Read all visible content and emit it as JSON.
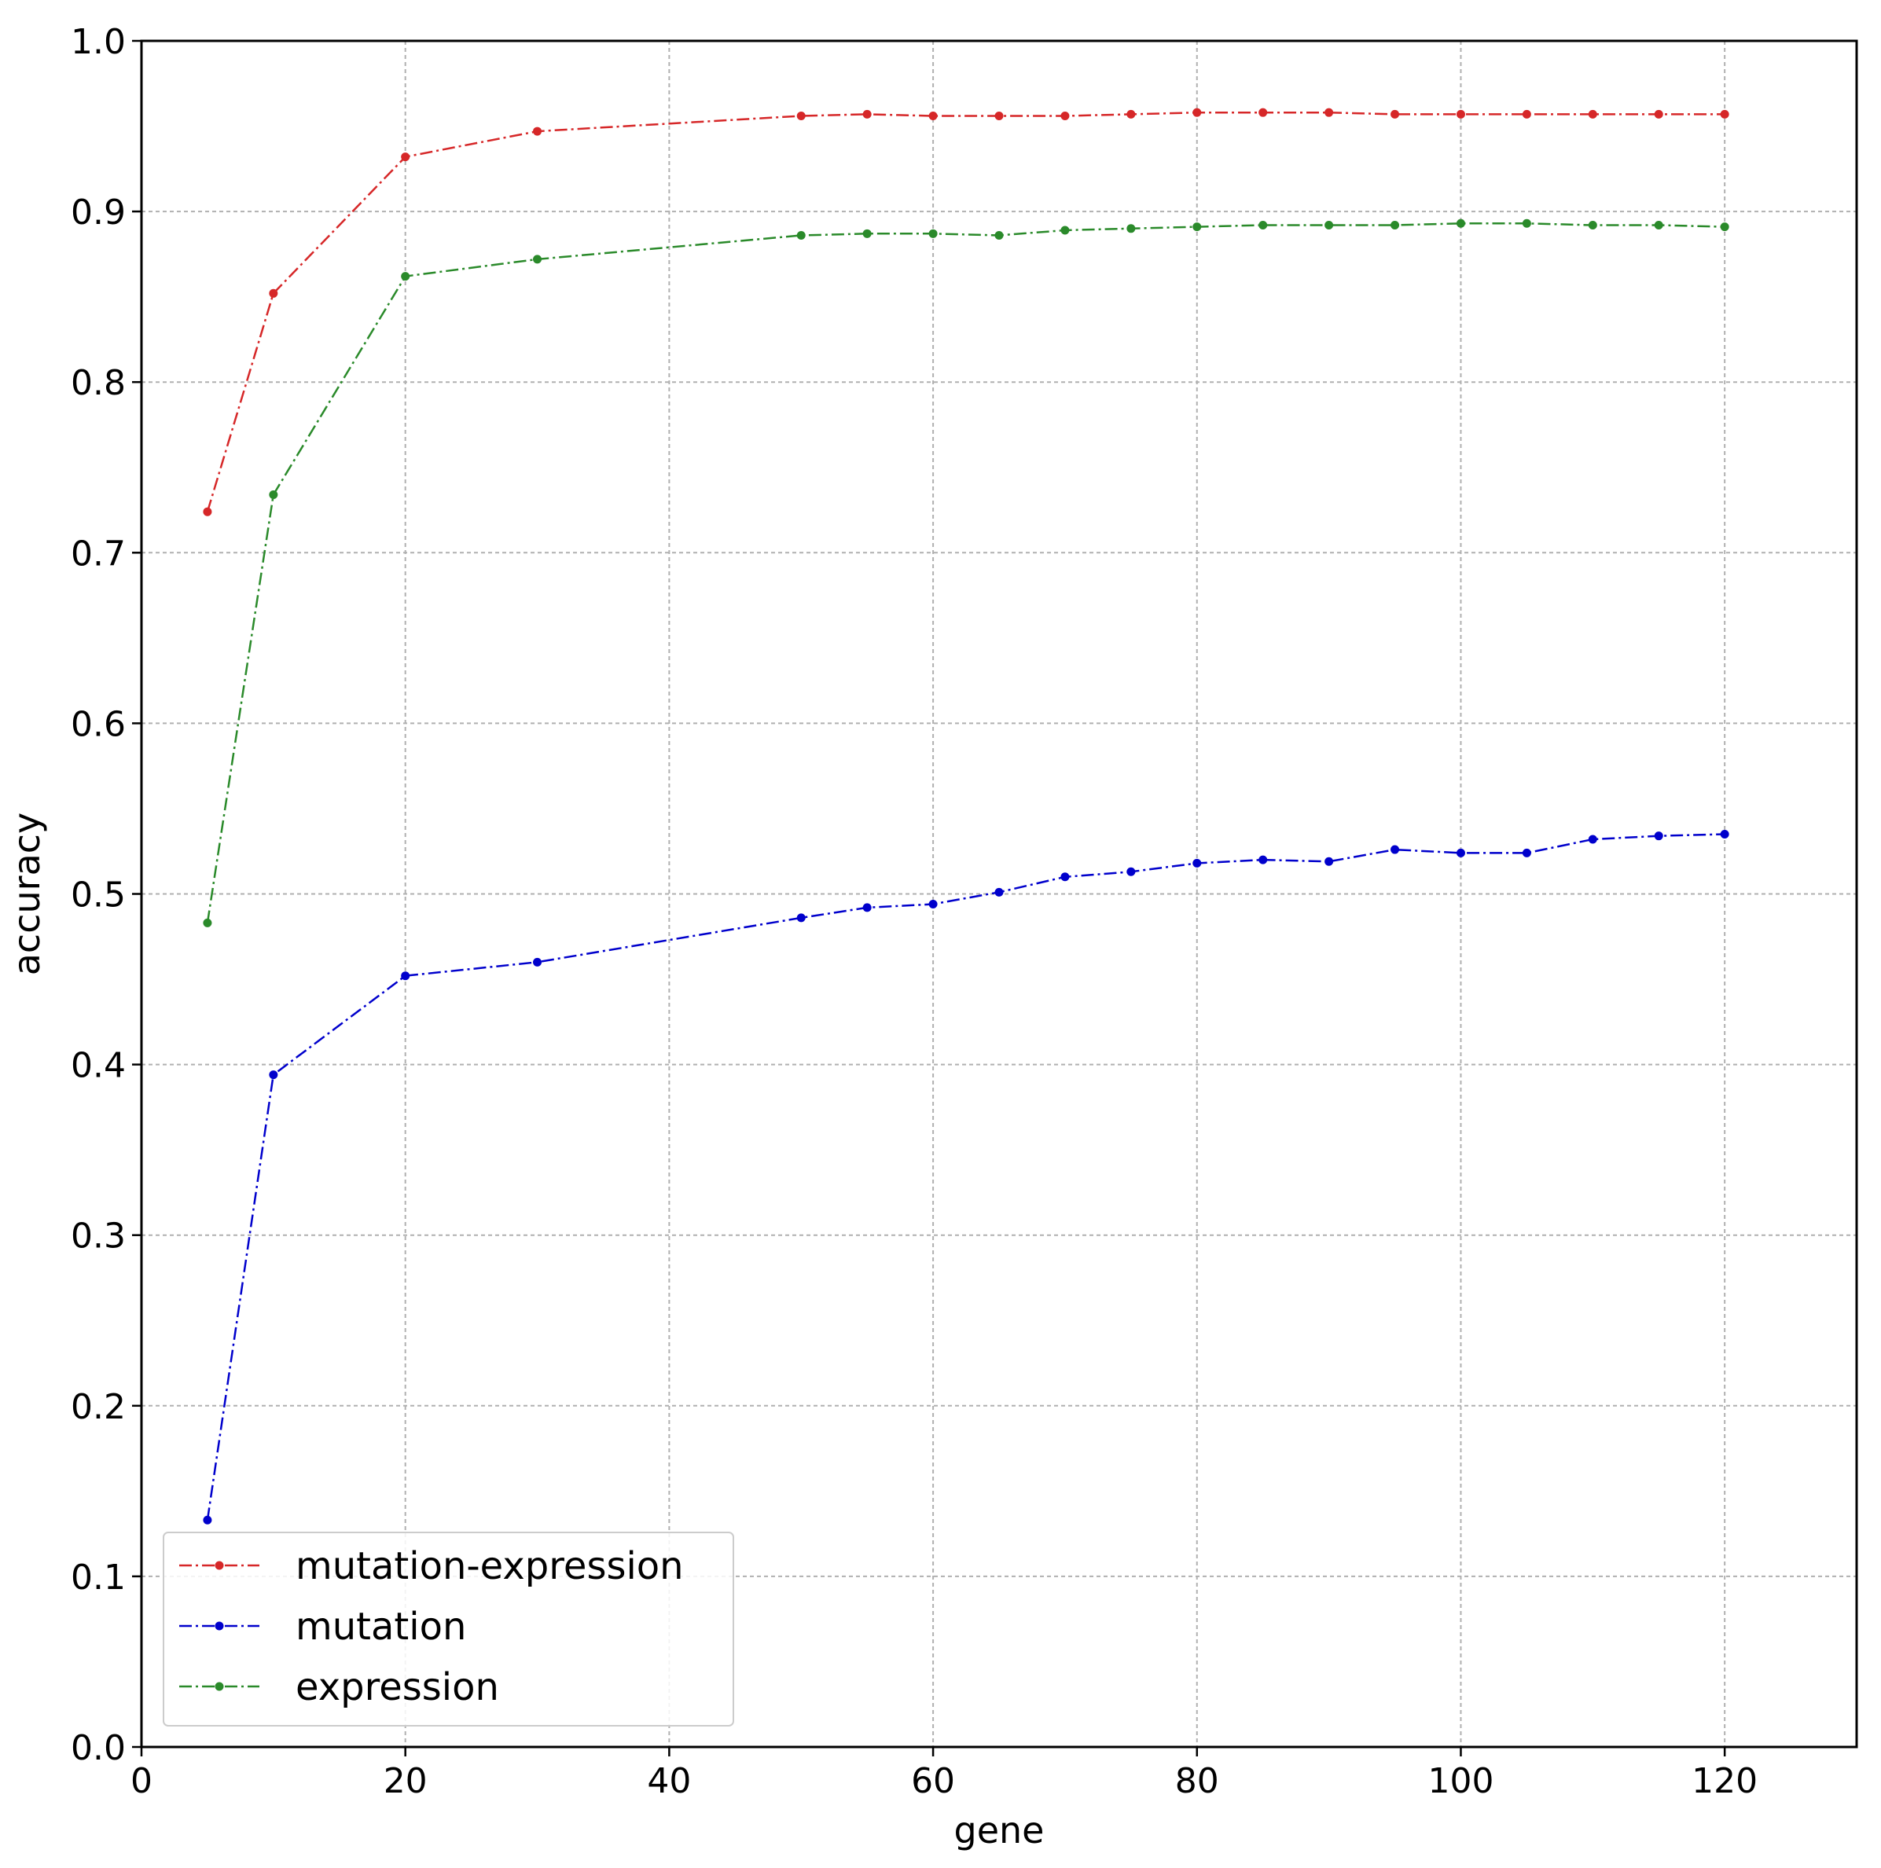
{
  "chart_data": {
    "type": "line",
    "xlabel": "gene",
    "ylabel": "accuracy",
    "xlim": [
      0,
      130
    ],
    "ylim": [
      0.0,
      1.0
    ],
    "xticks": [
      "0",
      "20",
      "40",
      "60",
      "80",
      "100",
      "120"
    ],
    "xtick_values": [
      0,
      20,
      40,
      60,
      80,
      100,
      120
    ],
    "yticks": [
      "0.0",
      "0.1",
      "0.2",
      "0.3",
      "0.4",
      "0.5",
      "0.6",
      "0.7",
      "0.8",
      "0.9",
      "1.0"
    ],
    "ytick_values": [
      0.0,
      0.1,
      0.2,
      0.3,
      0.4,
      0.5,
      0.6,
      0.7,
      0.8,
      0.9,
      1.0
    ],
    "grid": true,
    "legend_position": "lower-left",
    "x": [
      5,
      10,
      20,
      30,
      50,
      55,
      60,
      65,
      70,
      75,
      80,
      85,
      90,
      95,
      100,
      105,
      110,
      115,
      120
    ],
    "series": [
      {
        "name": "mutation-expression",
        "color": "#d62728",
        "values": [
          0.724,
          0.852,
          0.932,
          0.947,
          0.956,
          0.957,
          0.956,
          0.956,
          0.956,
          0.957,
          0.958,
          0.958,
          0.958,
          0.957,
          0.957,
          0.957,
          0.957,
          0.957,
          0.957
        ]
      },
      {
        "name": "mutation",
        "color": "#0000cc",
        "values": [
          0.133,
          0.394,
          0.452,
          0.46,
          0.486,
          0.492,
          0.494,
          0.501,
          0.51,
          0.513,
          0.518,
          0.52,
          0.519,
          0.526,
          0.524,
          0.524,
          0.532,
          0.534,
          0.535
        ]
      },
      {
        "name": "expression",
        "color": "#2a8a2a",
        "values": [
          0.483,
          0.734,
          0.862,
          0.872,
          0.886,
          0.887,
          0.887,
          0.886,
          0.889,
          0.89,
          0.891,
          0.892,
          0.892,
          0.892,
          0.893,
          0.893,
          0.892,
          0.892,
          0.891
        ]
      }
    ]
  }
}
